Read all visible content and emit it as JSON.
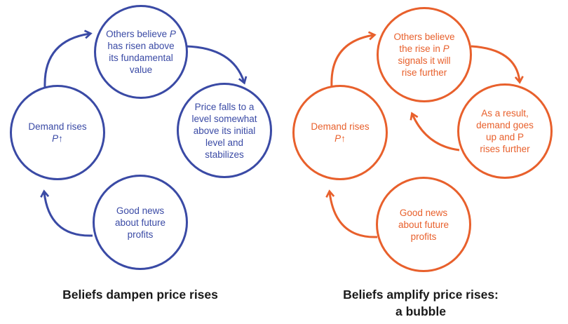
{
  "colors": {
    "left": "#3a4aa5",
    "right": "#e8602c"
  },
  "left_diagram": {
    "nodes": {
      "top": [
        "Others believe P",
        "has risen above",
        "its fundamental",
        "value"
      ],
      "right": [
        "Price falls to a",
        "level somewhat",
        "above its initial",
        "level and",
        "stabilizes"
      ],
      "bottom": [
        "Good news",
        "about future",
        "profits"
      ],
      "left": [
        "Demand rises",
        "P↑"
      ]
    },
    "caption": "Beliefs dampen price rises"
  },
  "right_diagram": {
    "nodes": {
      "top": [
        "Others believe",
        "the rise in P",
        "signals it will",
        "rise further"
      ],
      "right": [
        "As a result,",
        "demand goes",
        "up and P",
        "rises further"
      ],
      "bottom": [
        "Good news",
        "about future",
        "profits"
      ],
      "left": [
        "Demand rises",
        "P↑"
      ]
    },
    "caption_lines": [
      "Beliefs amplify price rises:",
      "a bubble"
    ]
  }
}
